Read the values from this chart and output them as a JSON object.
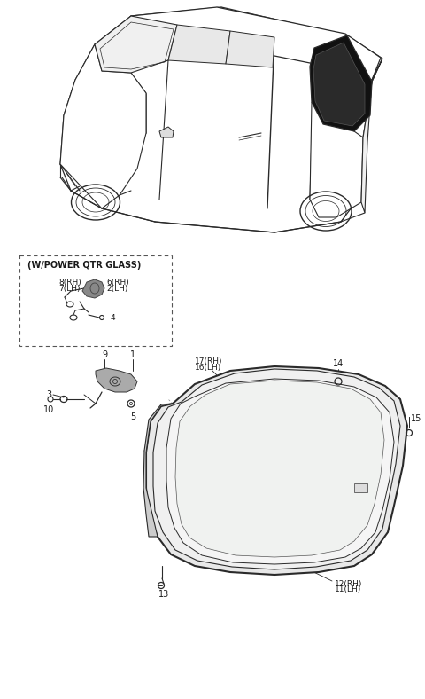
{
  "bg_color": "#ffffff",
  "lc": "#2a2a2a",
  "fig_width": 4.8,
  "fig_height": 7.88,
  "dpi": 100,
  "labels": {
    "power_box": "(W/POWER QTR GLASS)",
    "8RH": "8(RH)",
    "7LH": "7(LH)",
    "6RH": "6(RH)",
    "2LH": "2(LH)",
    "4": "4",
    "9": "9",
    "1": "1",
    "3": "3",
    "10": "10",
    "5": "5",
    "17RH": "17(RH)",
    "16LH": "16(LH)",
    "14": "14",
    "15": "15",
    "12RH": "12(RH)",
    "11LH": "11(LH)",
    "13": "13"
  },
  "car_color": "#1a1a1a",
  "glass_fill": "#f5f5f5"
}
